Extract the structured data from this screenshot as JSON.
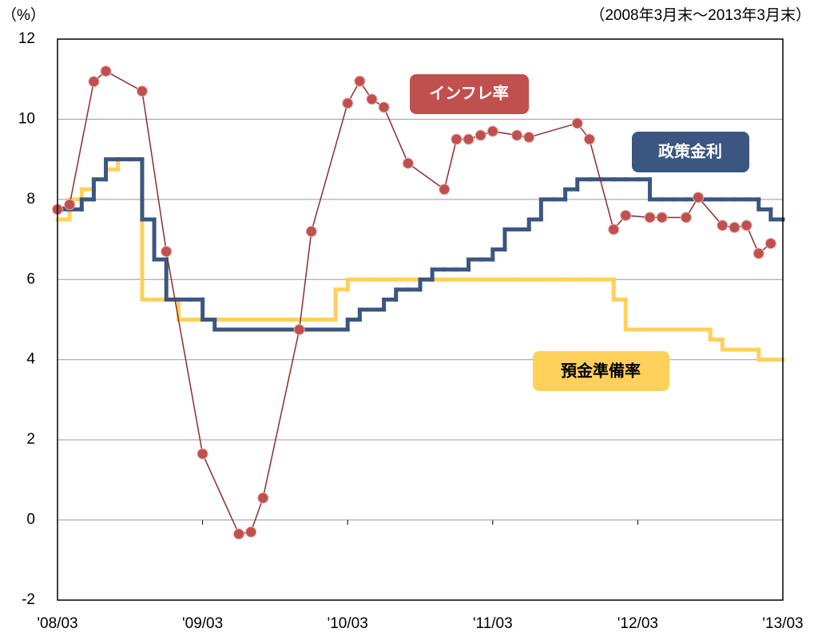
{
  "chart_data": {
    "type": "line",
    "y_unit_label": "（%）",
    "period_label": "（2008年3月末～2013年3月末）",
    "x": [
      0,
      1,
      2,
      3,
      4,
      5,
      6,
      7,
      8,
      9,
      10,
      11,
      12,
      13,
      14,
      15,
      16,
      17,
      18,
      19,
      20,
      21,
      22,
      23,
      24,
      25,
      26,
      27,
      28,
      29,
      30,
      31,
      32,
      33,
      34,
      35,
      36,
      37,
      38,
      39,
      40,
      41,
      42,
      43,
      44,
      45,
      46,
      47,
      48,
      49,
      50,
      51,
      52,
      53,
      54,
      55,
      56,
      57,
      58,
      59,
      60
    ],
    "xlim": [
      0,
      60
    ],
    "xticks": [
      {
        "value": 0,
        "label": "'08/03"
      },
      {
        "value": 12,
        "label": "'09/03"
      },
      {
        "value": 24,
        "label": "'10/03"
      },
      {
        "value": 36,
        "label": "'11/03"
      },
      {
        "value": 48,
        "label": "'12/03"
      },
      {
        "value": 60,
        "label": "'13/03"
      }
    ],
    "ylim": [
      -2,
      12
    ],
    "yticks": [
      -2,
      0,
      2,
      4,
      6,
      8,
      10,
      12
    ],
    "grid": true,
    "series": [
      {
        "name": "預金準備率",
        "color": "#ffd15a",
        "step": true,
        "values": [
          7.5,
          8.0,
          8.25,
          8.5,
          8.75,
          9.0,
          9.0,
          5.5,
          5.5,
          5.5,
          5.0,
          5.0,
          5.0,
          5.0,
          5.0,
          5.0,
          5.0,
          5.0,
          5.0,
          5.0,
          5.0,
          5.0,
          5.0,
          5.75,
          6.0,
          6.0,
          6.0,
          6.0,
          6.0,
          6.0,
          6.0,
          6.0,
          6.0,
          6.0,
          6.0,
          6.0,
          6.0,
          6.0,
          6.0,
          6.0,
          6.0,
          6.0,
          6.0,
          6.0,
          6.0,
          6.0,
          5.5,
          4.75,
          4.75,
          4.75,
          4.75,
          4.75,
          4.75,
          4.75,
          4.5,
          4.25,
          4.25,
          4.25,
          4.0,
          4.0,
          4.0
        ]
      },
      {
        "name": "政策金利",
        "color": "#3b5680",
        "step": true,
        "values": [
          7.75,
          7.75,
          8.0,
          8.5,
          9.0,
          9.0,
          9.0,
          7.5,
          6.5,
          5.5,
          5.5,
          5.5,
          5.0,
          4.75,
          4.75,
          4.75,
          4.75,
          4.75,
          4.75,
          4.75,
          4.75,
          4.75,
          4.75,
          4.75,
          5.0,
          5.25,
          5.25,
          5.5,
          5.75,
          5.75,
          6.0,
          6.25,
          6.25,
          6.25,
          6.5,
          6.5,
          6.75,
          7.25,
          7.25,
          7.5,
          8.0,
          8.0,
          8.25,
          8.5,
          8.5,
          8.5,
          8.5,
          8.5,
          8.5,
          8.0,
          8.0,
          8.0,
          8.0,
          8.0,
          8.0,
          8.0,
          8.0,
          8.0,
          7.75,
          7.5,
          7.5
        ]
      },
      {
        "name": "インフレ率",
        "color": "#c0504d",
        "step": false,
        "x": [
          0,
          1,
          3,
          4,
          7,
          9,
          12,
          15,
          16,
          17,
          20,
          21,
          24,
          25,
          26,
          27,
          29,
          32,
          33,
          34,
          35,
          36,
          38,
          39,
          43,
          44,
          46,
          47,
          49,
          50,
          52,
          53,
          55,
          56,
          57,
          58,
          59
        ],
        "values": [
          7.75,
          7.87,
          10.94,
          11.2,
          10.7,
          6.7,
          1.65,
          -0.35,
          -0.3,
          0.55,
          4.75,
          7.2,
          10.4,
          10.95,
          10.5,
          10.3,
          8.9,
          8.25,
          9.5,
          9.5,
          9.6,
          9.7,
          9.6,
          9.55,
          9.9,
          9.5,
          7.25,
          7.6,
          7.55,
          7.55,
          7.55,
          8.05,
          7.35,
          7.3,
          7.35,
          6.65,
          6.9
        ]
      }
    ]
  }
}
